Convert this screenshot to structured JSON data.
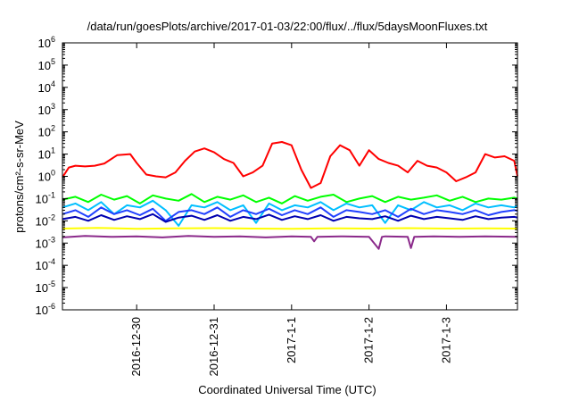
{
  "chart_data": {
    "type": "line",
    "title": "/data/run/goesPlots/archive/2017-01-03/22:00/flux/../flux/5daysMoonFluxes.txt",
    "xlabel": "Coordinated Universal Time (UTC)",
    "ylabel": "protons/cm²-s-sr-MeV",
    "y_scale": "log",
    "ylim": [
      1e-06,
      1000000.0
    ],
    "y_ticks": [
      {
        "exp": "-6"
      },
      {
        "exp": "-5"
      },
      {
        "exp": "-4"
      },
      {
        "exp": "-3"
      },
      {
        "exp": "-2"
      },
      {
        "exp": "-1"
      },
      {
        "exp": "0"
      },
      {
        "exp": "1"
      },
      {
        "exp": "2"
      },
      {
        "exp": "3"
      },
      {
        "exp": "4"
      },
      {
        "exp": "5"
      },
      {
        "exp": "6"
      }
    ],
    "xlim": [
      "2016-12-29T01:00",
      "2017-01-03T22:00"
    ],
    "x_ticks": [
      {
        "label": "2016-12-30",
        "t": "2016-12-30T00:00"
      },
      {
        "label": "2016-12-31",
        "t": "2016-12-31T00:00"
      },
      {
        "label": "2017-1-1",
        "t": "2017-01-01T00:00"
      },
      {
        "label": "2017-1-2",
        "t": "2017-01-02T00:00"
      },
      {
        "label": "2017-1-3",
        "t": "2017-01-03T00:00"
      }
    ],
    "grid": false,
    "series": [
      {
        "color": "#ff0000",
        "x": [
          "2016-12-29T01:00",
          "2016-12-29T03:00",
          "2016-12-29T05:00",
          "2016-12-29T08:00",
          "2016-12-29T11:00",
          "2016-12-29T14:00",
          "2016-12-29T18:00",
          "2016-12-29T22:00",
          "2016-12-30T00:00",
          "2016-12-30T03:00",
          "2016-12-30T06:00",
          "2016-12-30T09:00",
          "2016-12-30T12:00",
          "2016-12-30T15:00",
          "2016-12-30T18:00",
          "2016-12-30T21:00",
          "2016-12-31T00:00",
          "2016-12-31T03:00",
          "2016-12-31T06:00",
          "2016-12-31T09:00",
          "2016-12-31T12:00",
          "2016-12-31T15:00",
          "2016-12-31T18:00",
          "2016-12-31T21:00",
          "2017-01-01T00:00",
          "2017-01-01T03:00",
          "2017-01-01T06:00",
          "2017-01-01T09:00",
          "2017-01-01T12:00",
          "2017-01-01T15:00",
          "2017-01-01T18:00",
          "2017-01-01T21:00",
          "2017-01-02T00:00",
          "2017-01-02T03:00",
          "2017-01-02T06:00",
          "2017-01-02T09:00",
          "2017-01-02T12:00",
          "2017-01-02T15:00",
          "2017-01-02T18:00",
          "2017-01-02T21:00",
          "2017-01-03T00:00",
          "2017-01-03T03:00",
          "2017-01-03T06:00",
          "2017-01-03T09:00",
          "2017-01-03T12:00",
          "2017-01-03T15:00",
          "2017-01-03T18:00",
          "2017-01-03T21:00",
          "2017-01-03T22:00"
        ],
        "y": [
          0.9,
          2.5,
          3,
          2.8,
          3,
          3.8,
          9,
          10,
          4,
          1.2,
          1,
          0.9,
          1.5,
          5,
          13,
          18,
          12,
          6,
          4,
          1,
          1.5,
          3,
          30,
          35,
          25,
          2,
          0.3,
          0.5,
          8,
          25,
          15,
          3,
          15,
          6,
          4,
          3,
          1.5,
          5,
          3,
          2.5,
          1.5,
          0.6,
          0.9,
          1.5,
          10,
          7,
          8,
          5,
          1
        ]
      },
      {
        "color": "#00ff00",
        "x": [
          "2016-12-29T01:00",
          "2016-12-29T05:00",
          "2016-12-29T09:00",
          "2016-12-29T13:00",
          "2016-12-29T17:00",
          "2016-12-29T21:00",
          "2016-12-30T01:00",
          "2016-12-30T05:00",
          "2016-12-30T09:00",
          "2016-12-30T13:00",
          "2016-12-30T17:00",
          "2016-12-30T21:00",
          "2016-12-31T01:00",
          "2016-12-31T05:00",
          "2016-12-31T09:00",
          "2016-12-31T13:00",
          "2016-12-31T17:00",
          "2016-12-31T21:00",
          "2017-01-01T01:00",
          "2017-01-01T05:00",
          "2017-01-01T09:00",
          "2017-01-01T13:00",
          "2017-01-01T17:00",
          "2017-01-01T21:00",
          "2017-01-02T01:00",
          "2017-01-02T05:00",
          "2017-01-02T09:00",
          "2017-01-02T13:00",
          "2017-01-02T17:00",
          "2017-01-02T21:00",
          "2017-01-03T01:00",
          "2017-01-03T05:00",
          "2017-01-03T09:00",
          "2017-01-03T13:00",
          "2017-01-03T17:00",
          "2017-01-03T21:00",
          "2017-01-03T22:00"
        ],
        "y": [
          0.09,
          0.12,
          0.07,
          0.15,
          0.09,
          0.13,
          0.06,
          0.14,
          0.1,
          0.08,
          0.16,
          0.07,
          0.12,
          0.09,
          0.14,
          0.07,
          0.11,
          0.06,
          0.13,
          0.08,
          0.12,
          0.15,
          0.07,
          0.1,
          0.13,
          0.07,
          0.12,
          0.09,
          0.11,
          0.14,
          0.08,
          0.12,
          0.07,
          0.1,
          0.09,
          0.11,
          0.1
        ]
      },
      {
        "color": "#00bfff",
        "x": [
          "2016-12-29T01:00",
          "2016-12-29T05:00",
          "2016-12-29T09:00",
          "2016-12-29T13:00",
          "2016-12-29T17:00",
          "2016-12-29T21:00",
          "2016-12-30T01:00",
          "2016-12-30T05:00",
          "2016-12-30T09:00",
          "2016-12-30T13:00",
          "2016-12-30T17:00",
          "2016-12-30T21:00",
          "2016-12-31T01:00",
          "2016-12-31T05:00",
          "2016-12-31T09:00",
          "2016-12-31T13:00",
          "2016-12-31T17:00",
          "2016-12-31T21:00",
          "2017-01-01T01:00",
          "2017-01-01T05:00",
          "2017-01-01T09:00",
          "2017-01-01T13:00",
          "2017-01-01T17:00",
          "2017-01-01T21:00",
          "2017-01-02T01:00",
          "2017-01-02T05:00",
          "2017-01-02T09:00",
          "2017-01-02T13:00",
          "2017-01-02T17:00",
          "2017-01-02T21:00",
          "2017-01-03T01:00",
          "2017-01-03T05:00",
          "2017-01-03T09:00",
          "2017-01-03T13:00",
          "2017-01-03T17:00",
          "2017-01-03T21:00",
          "2017-01-03T22:00"
        ],
        "y": [
          0.04,
          0.06,
          0.03,
          0.07,
          0.02,
          0.05,
          0.04,
          0.08,
          0.03,
          0.006,
          0.05,
          0.04,
          0.07,
          0.03,
          0.05,
          0.008,
          0.06,
          0.03,
          0.05,
          0.04,
          0.07,
          0.03,
          0.06,
          0.04,
          0.05,
          0.008,
          0.05,
          0.03,
          0.07,
          0.04,
          0.05,
          0.03,
          0.06,
          0.04,
          0.05,
          0.04,
          0.05
        ]
      },
      {
        "color": "#2040ff",
        "x": [
          "2016-12-29T01:00",
          "2016-12-29T05:00",
          "2016-12-29T09:00",
          "2016-12-29T13:00",
          "2016-12-29T17:00",
          "2016-12-29T21:00",
          "2016-12-30T01:00",
          "2016-12-30T05:00",
          "2016-12-30T09:00",
          "2016-12-30T13:00",
          "2016-12-30T17:00",
          "2016-12-30T21:00",
          "2016-12-31T01:00",
          "2016-12-31T05:00",
          "2016-12-31T09:00",
          "2016-12-31T13:00",
          "2016-12-31T17:00",
          "2016-12-31T21:00",
          "2017-01-01T01:00",
          "2017-01-01T05:00",
          "2017-01-01T09:00",
          "2017-01-01T13:00",
          "2017-01-01T17:00",
          "2017-01-01T21:00",
          "2017-01-02T01:00",
          "2017-01-02T05:00",
          "2017-01-02T09:00",
          "2017-01-02T13:00",
          "2017-01-02T17:00",
          "2017-01-02T21:00",
          "2017-01-03T01:00",
          "2017-01-03T05:00",
          "2017-01-03T09:00",
          "2017-01-03T13:00",
          "2017-01-03T17:00",
          "2017-01-03T21:00",
          "2017-01-03T22:00"
        ],
        "y": [
          0.02,
          0.03,
          0.015,
          0.04,
          0.02,
          0.03,
          0.018,
          0.035,
          0.01,
          0.025,
          0.03,
          0.02,
          0.04,
          0.015,
          0.03,
          0.02,
          0.035,
          0.018,
          0.03,
          0.02,
          0.04,
          0.015,
          0.03,
          0.025,
          0.02,
          0.03,
          0.015,
          0.035,
          0.02,
          0.03,
          0.025,
          0.02,
          0.03,
          0.018,
          0.025,
          0.03,
          0.028
        ]
      },
      {
        "color": "#0000b0",
        "x": [
          "2016-12-29T01:00",
          "2016-12-29T05:00",
          "2016-12-29T09:00",
          "2016-12-29T13:00",
          "2016-12-29T17:00",
          "2016-12-29T21:00",
          "2016-12-30T01:00",
          "2016-12-30T05:00",
          "2016-12-30T09:00",
          "2016-12-30T13:00",
          "2016-12-30T17:00",
          "2016-12-30T21:00",
          "2016-12-31T01:00",
          "2016-12-31T05:00",
          "2016-12-31T09:00",
          "2016-12-31T13:00",
          "2016-12-31T17:00",
          "2016-12-31T21:00",
          "2017-01-01T01:00",
          "2017-01-01T05:00",
          "2017-01-01T09:00",
          "2017-01-01T13:00",
          "2017-01-01T17:00",
          "2017-01-01T21:00",
          "2017-01-02T01:00",
          "2017-01-02T05:00",
          "2017-01-02T09:00",
          "2017-01-02T13:00",
          "2017-01-02T17:00",
          "2017-01-02T21:00",
          "2017-01-03T01:00",
          "2017-01-03T05:00",
          "2017-01-03T09:00",
          "2017-01-03T13:00",
          "2017-01-03T17:00",
          "2017-01-03T21:00",
          "2017-01-03T22:00"
        ],
        "y": [
          0.012,
          0.015,
          0.01,
          0.018,
          0.011,
          0.016,
          0.012,
          0.02,
          0.009,
          0.014,
          0.017,
          0.011,
          0.018,
          0.01,
          0.015,
          0.012,
          0.019,
          0.011,
          0.016,
          0.012,
          0.018,
          0.01,
          0.015,
          0.013,
          0.012,
          0.016,
          0.01,
          0.017,
          0.012,
          0.015,
          0.013,
          0.011,
          0.016,
          0.012,
          0.014,
          0.015,
          0.014
        ]
      },
      {
        "color": "#ffff00",
        "x": [
          "2016-12-29T01:00",
          "2016-12-29T12:00",
          "2016-12-30T00:00",
          "2016-12-30T12:00",
          "2016-12-31T00:00",
          "2016-12-31T12:00",
          "2017-01-01T00:00",
          "2017-01-01T12:00",
          "2017-01-02T00:00",
          "2017-01-02T12:00",
          "2017-01-03T00:00",
          "2017-01-03T12:00",
          "2017-01-03T22:00"
        ],
        "y": [
          0.0045,
          0.0048,
          0.0044,
          0.0046,
          0.0047,
          0.0045,
          0.0044,
          0.0046,
          0.0045,
          0.0047,
          0.0045,
          0.0046,
          0.0045
        ]
      },
      {
        "color": "#8b2a8b",
        "x": [
          "2016-12-29T01:00",
          "2016-12-29T08:00",
          "2016-12-29T16:00",
          "2016-12-30T00:00",
          "2016-12-30T08:00",
          "2016-12-30T16:00",
          "2016-12-31T00:00",
          "2016-12-31T08:00",
          "2016-12-31T16:00",
          "2017-01-01T00:00",
          "2017-01-01T06:00",
          "2017-01-01T07:00",
          "2017-01-01T08:00",
          "2017-01-01T16:00",
          "2017-01-02T00:00",
          "2017-01-02T03:00",
          "2017-01-02T04:00",
          "2017-01-02T05:00",
          "2017-01-02T12:00",
          "2017-01-02T13:00",
          "2017-01-02T14:00",
          "2017-01-02T20:00",
          "2017-01-03T04:00",
          "2017-01-03T12:00",
          "2017-01-03T22:00"
        ],
        "y": [
          0.0018,
          0.0021,
          0.0019,
          0.002,
          0.0018,
          0.0021,
          0.0019,
          0.002,
          0.0018,
          0.002,
          0.0019,
          0.0012,
          0.0019,
          0.002,
          0.0019,
          0.00055,
          0.0019,
          0.002,
          0.0019,
          0.0006,
          0.0019,
          0.002,
          0.0019,
          0.002,
          0.0019
        ]
      }
    ]
  }
}
